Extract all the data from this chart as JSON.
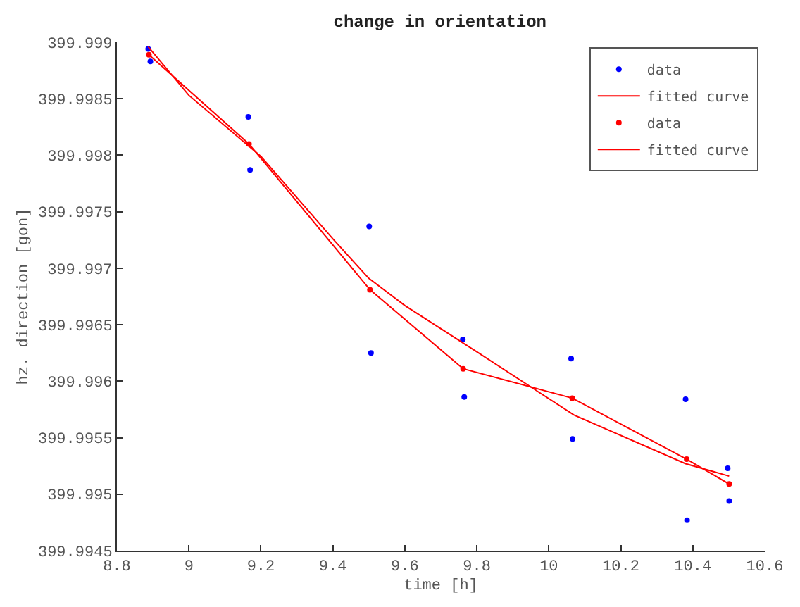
{
  "chart_data": {
    "type": "scatter",
    "title": "change in orientation",
    "xlabel": "time [h]",
    "ylabel": "hz. direction [gon]",
    "xlim": [
      8.8,
      10.6
    ],
    "xticks": [
      8.8,
      9,
      9.2,
      9.4,
      9.6,
      9.8,
      10,
      10.2,
      10.4,
      10.6
    ],
    "ylim": [
      399.9945,
      399.999
    ],
    "yticks": [
      399.9945,
      399.995,
      399.9955,
      399.996,
      399.9965,
      399.997,
      399.9975,
      399.998,
      399.9985,
      399.999
    ],
    "legend": "top right",
    "series": [
      {
        "name": "data",
        "marker": "circle",
        "color": "#0000ff",
        "x": [
          8.887,
          8.893,
          9.165,
          9.17,
          9.501,
          9.506,
          9.761,
          9.765,
          10.062,
          10.066,
          10.38,
          10.384,
          10.497,
          10.501
        ],
        "values": [
          399.99894,
          399.99883,
          399.99834,
          399.99787,
          399.99737,
          399.99625,
          399.99637,
          399.99586,
          399.9962,
          399.99549,
          399.99584,
          399.99477,
          399.99523,
          399.99494
        ]
      },
      {
        "name": "fitted curve",
        "type": "line",
        "marker": "none",
        "line_style": "solid",
        "color": "#ff0000",
        "x": [
          8.887,
          9.0,
          9.2,
          9.4,
          9.5,
          9.6,
          9.8,
          10.07,
          10.38,
          10.501
        ],
        "values": [
          399.99896,
          399.99853,
          399.99799,
          399.99726,
          399.99691,
          399.99667,
          399.99626,
          399.9957,
          399.99527,
          399.99516
        ]
      },
      {
        "name": "data",
        "marker": "circle",
        "color": "#ff0000",
        "x": [
          8.889,
          9.167,
          9.503,
          9.762,
          10.065,
          10.383,
          10.501
        ],
        "values": [
          399.99889,
          399.9981,
          399.99681,
          399.99611,
          399.99585,
          399.99531,
          399.99509
        ]
      },
      {
        "name": "fitted curve",
        "type": "line",
        "marker": "none",
        "line_style": "solid",
        "color": "#ff0000",
        "x": [
          8.889,
          9.167,
          9.503,
          9.762,
          10.065,
          10.383,
          10.501
        ],
        "values": [
          399.99889,
          399.9981,
          399.99681,
          399.99611,
          399.99585,
          399.99531,
          399.99509
        ]
      }
    ]
  }
}
